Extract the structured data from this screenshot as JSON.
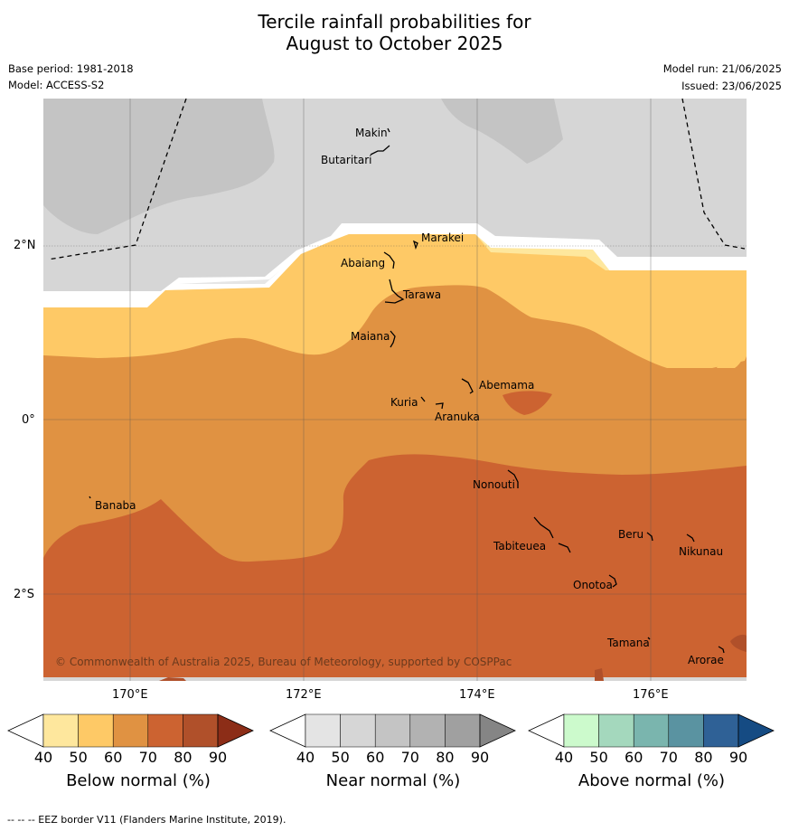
{
  "title": {
    "line1": "Tercile rainfall probabilities for",
    "line2": "August to October 2025"
  },
  "meta": {
    "base_period": "Base period: 1981-2018",
    "model": "Model: ACCESS-S2",
    "model_run": "Model run: 21/06/2025",
    "issued": "Issued: 23/06/2025"
  },
  "map": {
    "lat_labels": [
      "2°N",
      "0°",
      "2°S"
    ],
    "lon_labels": [
      "170°E",
      "172°E",
      "174°E",
      "176°E"
    ],
    "copyright": "© Commonwealth of Australia 2025, Bureau of Meteorology, supported by COSPPac",
    "islands": [
      "Makin",
      "Butaritari",
      "Marakei",
      "Abaiang",
      "Tarawa",
      "Maiana",
      "Abemama",
      "Kuria",
      "Aranuka",
      "Nonouti",
      "Banaba",
      "Beru",
      "Nikunau",
      "Tabiteuea",
      "Onotoa",
      "Tamana",
      "Arorae"
    ],
    "colors": {
      "near_normal_light": "#d6d6d6",
      "near_normal_mid": "#c4c4c4",
      "below_40_50": "#fee79d",
      "below_50_60": "#fec966",
      "below_60_70": "#e09242",
      "below_70_80": "#cc6331"
    }
  },
  "colorbars": [
    {
      "title": "Below normal (%)",
      "ticks": [
        "40",
        "50",
        "60",
        "70",
        "80",
        "90"
      ],
      "colors": [
        "#fee79d",
        "#fec966",
        "#e09242",
        "#cc6331",
        "#b0502a",
        "#8c2d17"
      ]
    },
    {
      "title": "Near normal (%)",
      "ticks": [
        "40",
        "50",
        "60",
        "70",
        "80",
        "90"
      ],
      "colors": [
        "#e4e4e4",
        "#d6d6d6",
        "#c4c4c4",
        "#b2b2b2",
        "#a0a0a0",
        "#858585"
      ]
    },
    {
      "title": "Above normal (%)",
      "ticks": [
        "40",
        "50",
        "60",
        "70",
        "80",
        "90"
      ],
      "colors": [
        "#ccfacc",
        "#a4d8bd",
        "#7ab5ae",
        "#5a93a1",
        "#2f6196",
        "#154b83"
      ]
    }
  ],
  "footer": "--  --  -- EEZ border V11 (Flanders Marine Institute, 2019)."
}
